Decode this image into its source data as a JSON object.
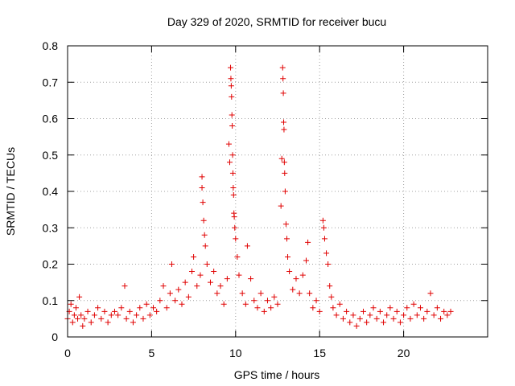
{
  "chart_data": {
    "type": "scatter",
    "title": "Day 329 of 2020, SRMTID for receiver bucu",
    "xlabel": "GPS time / hours",
    "ylabel": "SRMTID / TECUs",
    "xlim": [
      0,
      25
    ],
    "ylim": [
      0,
      0.8
    ],
    "xticks": [
      0,
      5,
      10,
      15,
      20
    ],
    "xtick_labels": [
      "0",
      "5",
      "10",
      "15",
      "20"
    ],
    "yticks": [
      0,
      0.1,
      0.2,
      0.3,
      0.4,
      0.5,
      0.6,
      0.7,
      0.8
    ],
    "ytick_labels": [
      "0",
      "0.1",
      "0.2",
      "0.3",
      "0.4",
      "0.5",
      "0.6",
      "0.7",
      "0.8"
    ],
    "grid": true,
    "marker": "+",
    "color": "#e00000",
    "series": [
      {
        "name": "SRMTID",
        "points": [
          [
            0.0,
            0.05
          ],
          [
            0.1,
            0.07
          ],
          [
            0.2,
            0.09
          ],
          [
            0.3,
            0.04
          ],
          [
            0.4,
            0.06
          ],
          [
            0.5,
            0.08
          ],
          [
            0.6,
            0.05
          ],
          [
            0.7,
            0.11
          ],
          [
            0.8,
            0.06
          ],
          [
            0.9,
            0.03
          ],
          [
            1.0,
            0.05
          ],
          [
            1.2,
            0.07
          ],
          [
            1.4,
            0.04
          ],
          [
            1.6,
            0.06
          ],
          [
            1.8,
            0.08
          ],
          [
            2.0,
            0.05
          ],
          [
            2.2,
            0.07
          ],
          [
            2.4,
            0.04
          ],
          [
            2.6,
            0.06
          ],
          [
            2.8,
            0.07
          ],
          [
            3.0,
            0.06
          ],
          [
            3.2,
            0.08
          ],
          [
            3.4,
            0.14
          ],
          [
            3.5,
            0.05
          ],
          [
            3.7,
            0.07
          ],
          [
            3.9,
            0.04
          ],
          [
            4.1,
            0.06
          ],
          [
            4.3,
            0.08
          ],
          [
            4.5,
            0.05
          ],
          [
            4.7,
            0.09
          ],
          [
            4.9,
            0.06
          ],
          [
            5.1,
            0.08
          ],
          [
            5.3,
            0.07
          ],
          [
            5.5,
            0.1
          ],
          [
            5.7,
            0.14
          ],
          [
            5.9,
            0.08
          ],
          [
            6.1,
            0.12
          ],
          [
            6.2,
            0.2
          ],
          [
            6.4,
            0.1
          ],
          [
            6.6,
            0.13
          ],
          [
            6.8,
            0.09
          ],
          [
            7.0,
            0.15
          ],
          [
            7.2,
            0.11
          ],
          [
            7.4,
            0.18
          ],
          [
            7.5,
            0.22
          ],
          [
            7.7,
            0.14
          ],
          [
            7.9,
            0.17
          ],
          [
            8.0,
            0.44
          ],
          [
            8.0,
            0.41
          ],
          [
            8.05,
            0.37
          ],
          [
            8.1,
            0.32
          ],
          [
            8.15,
            0.28
          ],
          [
            8.2,
            0.25
          ],
          [
            8.3,
            0.2
          ],
          [
            8.5,
            0.15
          ],
          [
            8.7,
            0.18
          ],
          [
            8.9,
            0.12
          ],
          [
            9.1,
            0.14
          ],
          [
            9.3,
            0.09
          ],
          [
            9.5,
            0.16
          ],
          [
            9.6,
            0.53
          ],
          [
            9.65,
            0.48
          ],
          [
            9.7,
            0.74
          ],
          [
            9.72,
            0.71
          ],
          [
            9.74,
            0.69
          ],
          [
            9.76,
            0.66
          ],
          [
            9.78,
            0.61
          ],
          [
            9.8,
            0.58
          ],
          [
            9.82,
            0.5
          ],
          [
            9.84,
            0.45
          ],
          [
            9.86,
            0.41
          ],
          [
            9.88,
            0.39
          ],
          [
            9.9,
            0.34
          ],
          [
            9.92,
            0.33
          ],
          [
            9.95,
            0.3
          ],
          [
            10.0,
            0.27
          ],
          [
            10.1,
            0.22
          ],
          [
            10.2,
            0.17
          ],
          [
            10.4,
            0.12
          ],
          [
            10.6,
            0.09
          ],
          [
            10.7,
            0.25
          ],
          [
            10.9,
            0.16
          ],
          [
            11.1,
            0.1
          ],
          [
            11.3,
            0.08
          ],
          [
            11.5,
            0.12
          ],
          [
            11.7,
            0.07
          ],
          [
            11.9,
            0.1
          ],
          [
            12.1,
            0.08
          ],
          [
            12.3,
            0.11
          ],
          [
            12.5,
            0.09
          ],
          [
            12.7,
            0.36
          ],
          [
            12.75,
            0.49
          ],
          [
            12.8,
            0.74
          ],
          [
            12.82,
            0.71
          ],
          [
            12.84,
            0.67
          ],
          [
            12.86,
            0.59
          ],
          [
            12.88,
            0.57
          ],
          [
            12.9,
            0.48
          ],
          [
            12.92,
            0.45
          ],
          [
            12.95,
            0.4
          ],
          [
            13.0,
            0.31
          ],
          [
            13.05,
            0.27
          ],
          [
            13.1,
            0.22
          ],
          [
            13.2,
            0.18
          ],
          [
            13.4,
            0.13
          ],
          [
            13.6,
            0.16
          ],
          [
            13.8,
            0.12
          ],
          [
            14.0,
            0.17
          ],
          [
            14.2,
            0.21
          ],
          [
            14.3,
            0.26
          ],
          [
            14.4,
            0.12
          ],
          [
            14.6,
            0.08
          ],
          [
            14.8,
            0.1
          ],
          [
            15.0,
            0.07
          ],
          [
            15.2,
            0.32
          ],
          [
            15.25,
            0.3
          ],
          [
            15.3,
            0.27
          ],
          [
            15.4,
            0.23
          ],
          [
            15.5,
            0.2
          ],
          [
            15.6,
            0.14
          ],
          [
            15.7,
            0.11
          ],
          [
            15.8,
            0.08
          ],
          [
            16.0,
            0.06
          ],
          [
            16.2,
            0.09
          ],
          [
            16.4,
            0.05
          ],
          [
            16.6,
            0.07
          ],
          [
            16.8,
            0.04
          ],
          [
            17.0,
            0.06
          ],
          [
            17.2,
            0.03
          ],
          [
            17.4,
            0.05
          ],
          [
            17.6,
            0.07
          ],
          [
            17.8,
            0.04
          ],
          [
            18.0,
            0.06
          ],
          [
            18.2,
            0.08
          ],
          [
            18.4,
            0.05
          ],
          [
            18.6,
            0.07
          ],
          [
            18.8,
            0.04
          ],
          [
            19.0,
            0.06
          ],
          [
            19.2,
            0.08
          ],
          [
            19.4,
            0.05
          ],
          [
            19.6,
            0.07
          ],
          [
            19.8,
            0.04
          ],
          [
            20.0,
            0.06
          ],
          [
            20.2,
            0.08
          ],
          [
            20.4,
            0.05
          ],
          [
            20.6,
            0.09
          ],
          [
            20.8,
            0.06
          ],
          [
            21.0,
            0.08
          ],
          [
            21.2,
            0.05
          ],
          [
            21.4,
            0.07
          ],
          [
            21.6,
            0.12
          ],
          [
            21.8,
            0.06
          ],
          [
            22.0,
            0.08
          ],
          [
            22.2,
            0.05
          ],
          [
            22.4,
            0.07
          ],
          [
            22.6,
            0.06
          ],
          [
            22.8,
            0.07
          ]
        ]
      }
    ]
  }
}
